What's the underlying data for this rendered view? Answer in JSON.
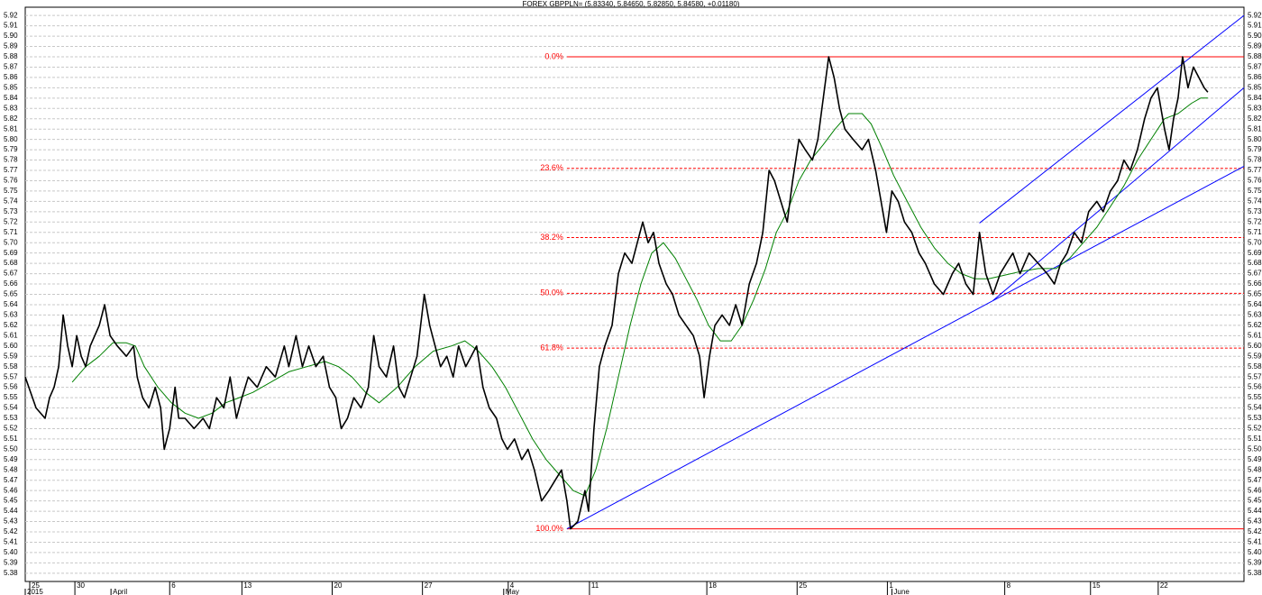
{
  "chart_data": {
    "type": "line",
    "title": "FOREX GBPPLN= (5.83340, 5.84650, 5.82850, 5.84580, +0.01180)",
    "xlim": [
      0,
      270
    ],
    "ylim": [
      5.372,
      5.928
    ],
    "yticks": [
      5.38,
      5.39,
      {
        "value": 5.4,
        "label": "5.40"
      },
      5.41,
      5.42,
      5.43,
      5.44,
      5.45,
      5.46,
      5.47,
      5.48,
      5.49,
      {
        "value": 5.5,
        "label": "5.50"
      },
      5.51,
      5.52,
      5.53,
      5.54,
      5.55,
      5.56,
      5.57,
      5.58,
      5.59,
      {
        "value": 5.6,
        "label": "5.60"
      },
      5.61,
      5.62,
      5.63,
      5.64,
      5.65,
      5.66,
      5.67,
      5.68,
      5.69,
      {
        "value": 5.7,
        "label": "5.70"
      },
      5.71,
      5.72,
      5.73,
      5.74,
      5.75,
      5.76,
      5.77,
      5.78,
      5.79,
      {
        "value": 5.8,
        "label": "5.80"
      },
      5.81,
      5.82,
      5.83,
      5.84,
      5.85,
      5.86,
      5.87,
      5.88,
      5.89,
      {
        "value": 5.9,
        "label": "5.90"
      },
      5.91,
      5.92
    ],
    "xticks": [
      {
        "value": 1,
        "label": "25"
      },
      {
        "value": 11,
        "label": "30"
      },
      {
        "value": 32,
        "label": "6"
      },
      {
        "value": 48,
        "label": "13"
      },
      {
        "value": 68,
        "label": "20"
      },
      {
        "value": 88,
        "label": "27"
      },
      {
        "value": 107,
        "label": "4"
      },
      {
        "value": 125,
        "label": "11"
      },
      {
        "value": 151,
        "label": "18"
      },
      {
        "value": 171,
        "label": "25"
      },
      {
        "value": 191,
        "label": "1"
      },
      {
        "value": 217,
        "label": "8"
      },
      {
        "value": 236,
        "label": "15"
      },
      {
        "value": 251,
        "label": "22"
      }
    ],
    "month_ticks": [
      {
        "value": 0,
        "label": "2015"
      },
      {
        "value": 19,
        "label": "April"
      },
      {
        "value": 106,
        "label": "May"
      },
      {
        "value": 192,
        "label": "June"
      }
    ],
    "grid": true,
    "series": [
      {
        "color": "#000000",
        "x": [
          0,
          2.4,
          4.4,
          5.4,
          6.4,
          7.4,
          8.4,
          9.4,
          10.4,
          11.4,
          12.4,
          13.4,
          14.4,
          16.4,
          17.6,
          18.8,
          20.4,
          22.4,
          24,
          24.8,
          26,
          27.4,
          28.8,
          30,
          30.8,
          32,
          33.2,
          34,
          35.4,
          37.4,
          39.4,
          40.8,
          42.4,
          44,
          45.4,
          46.8,
          48,
          49.4,
          51.4,
          53.4,
          55.4,
          57.4,
          58.4,
          60,
          61.4,
          62.8,
          64.4,
          66,
          67.4,
          68.8,
          70,
          71.4,
          72.8,
          74.4,
          76,
          77.2,
          78.4,
          80,
          81.6,
          82.8,
          84,
          85.4,
          86.8,
          88.4,
          89.6,
          90.8,
          92,
          93.4,
          94.8,
          96,
          97.6,
          98.8,
          100,
          101.4,
          102.8,
          104.4,
          105.6,
          106.8,
          108.4,
          110,
          111.4,
          112.8,
          114.4,
          116,
          117.4,
          118.8,
          120,
          120.8,
          122.4,
          124,
          124.8,
          126,
          127.2,
          128.4,
          130,
          131.4,
          132.8,
          134.4,
          135.6,
          136.8,
          138,
          139.2,
          140.4,
          142,
          143.4,
          144.8,
          146.4,
          148,
          149.4,
          150.4,
          151.6,
          152.8,
          154.4,
          156,
          157.4,
          158.8,
          160.4,
          162,
          163.4,
          164.8,
          166,
          167.4,
          168.8,
          170,
          171.4,
          172.8,
          174.4,
          175.6,
          176.8,
          178,
          179.2,
          180.4,
          181.6,
          183.4,
          185.4,
          186.8,
          188.4,
          189.6,
          190.8,
          192,
          193.4,
          194.8,
          196.4,
          198,
          199.4,
          201.4,
          203.4,
          205.4,
          206.8,
          208.4,
          210,
          211.4,
          212.8,
          214.4,
          216,
          217.4,
          218.8,
          220.4,
          222.4,
          224.4,
          226.4,
          228,
          229.4,
          230.8,
          232.4,
          234,
          235.6,
          237.4,
          238.8,
          240.4,
          242,
          243.4,
          244.8,
          246.4,
          248,
          249.4,
          250.8,
          252.4,
          253.4,
          254.4,
          255.4,
          256.4,
          257.6,
          258.8,
          260,
          261.2,
          262
        ],
        "values": [
          5.57,
          5.54,
          5.53,
          5.55,
          5.56,
          5.58,
          5.63,
          5.6,
          5.58,
          5.61,
          5.59,
          5.58,
          5.6,
          5.62,
          5.64,
          5.61,
          5.6,
          5.59,
          5.6,
          5.57,
          5.55,
          5.54,
          5.56,
          5.54,
          5.5,
          5.52,
          5.56,
          5.53,
          5.53,
          5.52,
          5.53,
          5.52,
          5.55,
          5.54,
          5.57,
          5.53,
          5.55,
          5.57,
          5.56,
          5.58,
          5.57,
          5.6,
          5.58,
          5.61,
          5.58,
          5.6,
          5.58,
          5.59,
          5.56,
          5.55,
          5.52,
          5.53,
          5.55,
          5.54,
          5.56,
          5.61,
          5.58,
          5.57,
          5.6,
          5.56,
          5.55,
          5.57,
          5.59,
          5.65,
          5.62,
          5.6,
          5.58,
          5.59,
          5.57,
          5.6,
          5.58,
          5.59,
          5.6,
          5.56,
          5.54,
          5.53,
          5.51,
          5.5,
          5.51,
          5.49,
          5.5,
          5.48,
          5.45,
          5.46,
          5.47,
          5.48,
          5.45,
          5.423,
          5.43,
          5.46,
          5.44,
          5.52,
          5.58,
          5.6,
          5.62,
          5.67,
          5.69,
          5.68,
          5.7,
          5.72,
          5.7,
          5.71,
          5.68,
          5.66,
          5.65,
          5.63,
          5.62,
          5.61,
          5.59,
          5.55,
          5.59,
          5.62,
          5.63,
          5.62,
          5.64,
          5.62,
          5.66,
          5.68,
          5.71,
          5.77,
          5.76,
          5.74,
          5.72,
          5.76,
          5.8,
          5.79,
          5.78,
          5.8,
          5.84,
          5.88,
          5.86,
          5.83,
          5.81,
          5.8,
          5.79,
          5.8,
          5.77,
          5.74,
          5.71,
          5.75,
          5.74,
          5.72,
          5.71,
          5.69,
          5.68,
          5.66,
          5.65,
          5.67,
          5.68,
          5.66,
          5.65,
          5.71,
          5.67,
          5.65,
          5.67,
          5.68,
          5.69,
          5.67,
          5.69,
          5.68,
          5.67,
          5.66,
          5.68,
          5.69,
          5.71,
          5.7,
          5.73,
          5.74,
          5.73,
          5.75,
          5.76,
          5.78,
          5.77,
          5.79,
          5.82,
          5.84,
          5.85,
          5.81,
          5.79,
          5.82,
          5.84,
          5.88,
          5.85,
          5.87,
          5.86,
          5.85,
          5.8458
        ]
      },
      {
        "color": "#008000",
        "x": [
          10.4,
          13.4,
          16.4,
          19.4,
          22.4,
          24.4,
          26.4,
          29.4,
          32.4,
          35.4,
          38.4,
          41.4,
          44.4,
          47.4,
          50.4,
          54.4,
          58.4,
          62.4,
          66.4,
          69.4,
          72.4,
          75.4,
          78.4,
          82.4,
          86.4,
          90.4,
          94.4,
          97.4,
          100.4,
          103.4,
          106.4,
          109.4,
          112.4,
          115.4,
          118.4,
          121.4,
          124,
          126.4,
          128.8,
          131.4,
          134,
          136.4,
          138.8,
          141.4,
          144,
          146.4,
          148.8,
          151.4,
          154,
          156.4,
          158.8,
          161.4,
          164,
          166.4,
          168.8,
          171.4,
          174,
          176.8,
          179.4,
          182.4,
          185.4,
          187.4,
          190,
          192.4,
          195.4,
          198.4,
          201.4,
          204.4,
          207.4,
          210.4,
          213.4,
          216.4,
          220.4,
          224.4,
          228.4,
          231.4,
          234.4,
          237.4,
          240.4,
          243.4,
          246.4,
          249.4,
          252.4,
          255.4,
          258.4,
          260.4,
          262
        ],
        "values": [
          5.565,
          5.58,
          5.59,
          5.603,
          5.603,
          5.6,
          5.58,
          5.56,
          5.545,
          5.535,
          5.53,
          5.535,
          5.545,
          5.55,
          5.555,
          5.565,
          5.575,
          5.58,
          5.585,
          5.58,
          5.57,
          5.555,
          5.545,
          5.56,
          5.58,
          5.595,
          5.6,
          5.605,
          5.595,
          5.58,
          5.56,
          5.535,
          5.51,
          5.49,
          5.475,
          5.46,
          5.455,
          5.48,
          5.52,
          5.57,
          5.62,
          5.66,
          5.69,
          5.7,
          5.685,
          5.665,
          5.645,
          5.62,
          5.605,
          5.605,
          5.62,
          5.645,
          5.675,
          5.71,
          5.73,
          5.76,
          5.78,
          5.795,
          5.81,
          5.825,
          5.825,
          5.815,
          5.79,
          5.765,
          5.74,
          5.715,
          5.695,
          5.68,
          5.67,
          5.665,
          5.665,
          5.668,
          5.672,
          5.675,
          5.675,
          5.685,
          5.7,
          5.715,
          5.735,
          5.755,
          5.78,
          5.8,
          5.82,
          5.825,
          5.835,
          5.84,
          5.84
        ]
      }
    ],
    "fib_start": 120,
    "fib_color": "#ff0000",
    "fib_levels": [
      {
        "label": "0.0%",
        "value": 5.88,
        "style": "solid"
      },
      {
        "label": "23.6%",
        "value": 5.772,
        "style": "dashed"
      },
      {
        "label": "38.2%",
        "value": 5.705,
        "style": "dashed"
      },
      {
        "label": "50.0%",
        "value": 5.651,
        "style": "dashed"
      },
      {
        "label": "61.8%",
        "value": 5.598,
        "style": "dashed"
      },
      {
        "label": "100.0%",
        "value": 5.423,
        "style": "solid"
      }
    ],
    "trend_color": "#0000ff",
    "trend_lines": [
      {
        "x": [
          120,
          270
        ],
        "y": [
          5.423,
          5.774
        ]
      },
      {
        "x": [
          214.4,
          270
        ],
        "y": [
          5.644,
          5.85
        ]
      },
      {
        "x": [
          211.4,
          270
        ],
        "y": [
          5.719,
          5.92
        ]
      }
    ]
  }
}
